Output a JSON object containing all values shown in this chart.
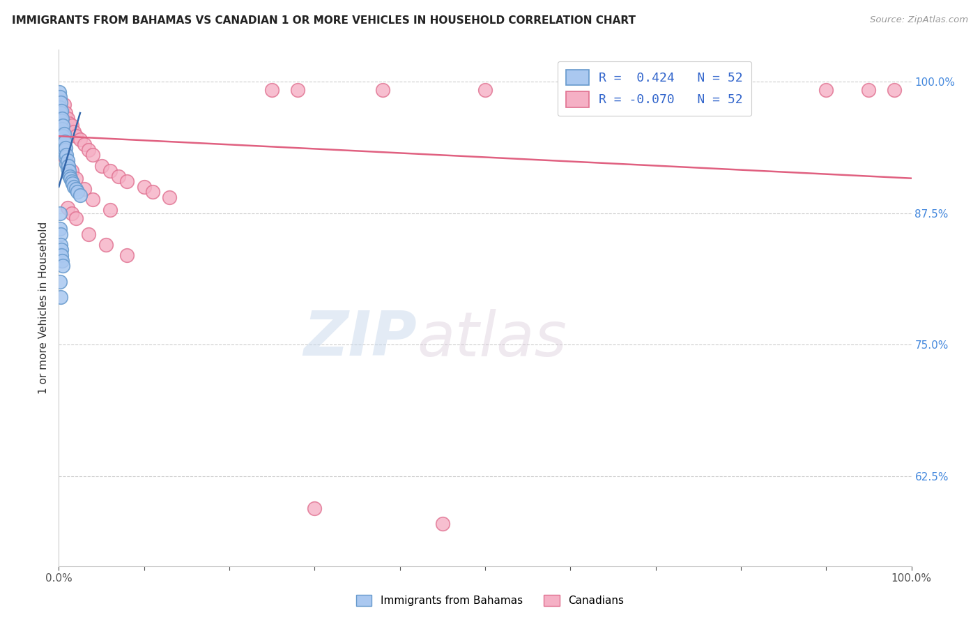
{
  "title": "IMMIGRANTS FROM BAHAMAS VS CANADIAN 1 OR MORE VEHICLES IN HOUSEHOLD CORRELATION CHART",
  "source": "Source: ZipAtlas.com",
  "ylabel": "1 or more Vehicles in Household",
  "watermark": "ZIPatlas",
  "legend_blue_r": "R =  0.424",
  "legend_blue_n": "N = 52",
  "legend_pink_r": "R = -0.070",
  "legend_pink_n": "N = 52",
  "xlim": [
    0.0,
    1.0
  ],
  "ylim": [
    0.54,
    1.03
  ],
  "yticks": [
    0.625,
    0.75,
    0.875,
    1.0
  ],
  "ytick_labels": [
    "62.5%",
    "75.0%",
    "87.5%",
    "100.0%"
  ],
  "blue_color": "#aac8f0",
  "blue_edge_color": "#6699cc",
  "pink_color": "#f5b0c5",
  "pink_edge_color": "#e07090",
  "blue_line_color": "#3366aa",
  "pink_line_color": "#e06080",
  "grid_color": "#cccccc",
  "background_color": "#ffffff",
  "blue_scatter_x": [
    0.0005,
    0.001,
    0.001,
    0.001,
    0.001,
    0.002,
    0.002,
    0.002,
    0.002,
    0.003,
    0.003,
    0.003,
    0.003,
    0.004,
    0.004,
    0.004,
    0.004,
    0.005,
    0.005,
    0.005,
    0.006,
    0.006,
    0.006,
    0.007,
    0.007,
    0.008,
    0.008,
    0.009,
    0.009,
    0.01,
    0.01,
    0.011,
    0.011,
    0.012,
    0.013,
    0.014,
    0.015,
    0.016,
    0.018,
    0.02,
    0.022,
    0.025,
    0.001,
    0.001,
    0.002,
    0.002,
    0.003,
    0.003,
    0.004,
    0.005,
    0.001,
    0.002
  ],
  "blue_scatter_y": [
    0.99,
    0.985,
    0.975,
    0.965,
    0.958,
    0.98,
    0.97,
    0.96,
    0.952,
    0.972,
    0.963,
    0.955,
    0.945,
    0.965,
    0.955,
    0.948,
    0.938,
    0.958,
    0.948,
    0.94,
    0.95,
    0.942,
    0.933,
    0.943,
    0.935,
    0.937,
    0.928,
    0.93,
    0.922,
    0.925,
    0.917,
    0.92,
    0.912,
    0.915,
    0.91,
    0.908,
    0.905,
    0.903,
    0.9,
    0.898,
    0.895,
    0.892,
    0.875,
    0.86,
    0.855,
    0.845,
    0.84,
    0.835,
    0.83,
    0.825,
    0.81,
    0.795
  ],
  "pink_scatter_x": [
    0.001,
    0.002,
    0.003,
    0.004,
    0.005,
    0.006,
    0.007,
    0.008,
    0.009,
    0.01,
    0.012,
    0.015,
    0.018,
    0.02,
    0.025,
    0.03,
    0.035,
    0.04,
    0.05,
    0.06,
    0.07,
    0.08,
    0.1,
    0.11,
    0.13,
    0.003,
    0.005,
    0.007,
    0.01,
    0.015,
    0.02,
    0.03,
    0.04,
    0.06,
    0.25,
    0.28,
    0.38,
    0.5,
    0.6,
    0.7,
    0.8,
    0.9,
    0.95,
    0.98,
    0.01,
    0.015,
    0.02,
    0.035,
    0.055,
    0.08,
    0.3,
    0.45
  ],
  "pink_scatter_y": [
    0.982,
    0.975,
    0.968,
    0.972,
    0.965,
    0.978,
    0.96,
    0.97,
    0.958,
    0.965,
    0.96,
    0.958,
    0.952,
    0.948,
    0.945,
    0.94,
    0.935,
    0.93,
    0.92,
    0.915,
    0.91,
    0.905,
    0.9,
    0.895,
    0.89,
    0.942,
    0.935,
    0.928,
    0.922,
    0.915,
    0.908,
    0.898,
    0.888,
    0.878,
    0.992,
    0.992,
    0.992,
    0.992,
    0.992,
    0.992,
    0.992,
    0.992,
    0.992,
    0.992,
    0.88,
    0.875,
    0.87,
    0.855,
    0.845,
    0.835,
    0.595,
    0.58
  ],
  "blue_trend_x": [
    0.0,
    0.025
  ],
  "blue_trend_y": [
    0.9,
    0.97
  ],
  "pink_trend_x": [
    0.0,
    1.0
  ],
  "pink_trend_y": [
    0.948,
    0.908
  ]
}
